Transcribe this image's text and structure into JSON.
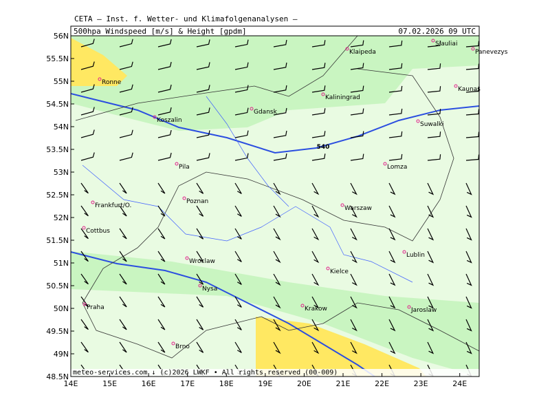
{
  "map": {
    "title": "CETA – Inst. f. Wetter- und Klimafolgenanalysen –",
    "subtitle": "500hpa Windspeed [m/s] & Height [gpdm]",
    "date": "07.02.2026 09 UTC",
    "lon_labels": [
      "14E",
      "15E",
      "16E",
      "17E",
      "18E",
      "19E",
      "20E",
      "21E",
      "22E",
      "23E",
      "24E"
    ],
    "lat_labels": [
      "56N",
      "55.5N",
      "55N",
      "54.5N",
      "54N",
      "53.5N",
      "53N",
      "52.5N",
      "52N",
      "51.5N",
      "51N",
      "50.5N",
      "50N",
      "49.5N",
      "49N",
      "48.5N"
    ],
    "cities": [
      "Siauliai",
      "Panevezys",
      "Klaipeda",
      "Kaunas",
      "Ronne",
      "Kaliningrad",
      "Gdansk",
      "Koszalin",
      "Suwalki",
      "Lomza",
      "Pila",
      "Poznan",
      "Frankfurt/O.",
      "Warszaw",
      "Cottbus",
      "Lublin",
      "Wroclaw",
      "Kielce",
      "Nysa",
      "Praha",
      "Krakow",
      "Jaroslaw",
      "Brno"
    ],
    "contour_label": "540",
    "footer": "meteo-services.com ↓ (c)2026 LWKF • All rights reserved (00-009)"
  }
}
